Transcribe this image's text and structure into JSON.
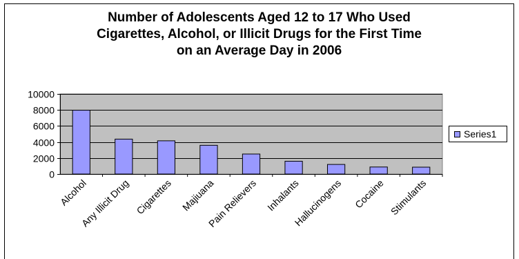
{
  "chart_data": {
    "type": "bar",
    "title_lines": [
      "Number of Adolescents Aged 12 to 17 Who Used",
      "Cigarettes, Alcohol, or Illicit Drugs for the First Time",
      "on an Average Day in 2006"
    ],
    "categories": [
      "Alcohol",
      "Any Illicit Drug",
      "Cigarettes",
      "Majiuana",
      "Pain Relievers",
      "Inhalants",
      "Hallucinogens",
      "Cocaine",
      "Stimulants"
    ],
    "series": [
      {
        "name": "Series1",
        "values": [
          7970,
          4360,
          4150,
          3590,
          2500,
          1600,
          1200,
          880,
          860
        ]
      }
    ],
    "ylim": [
      0,
      10000
    ],
    "yticks": [
      0,
      2000,
      4000,
      6000,
      8000,
      10000
    ],
    "grid": true,
    "legend": "right",
    "colors": {
      "bar": "#9999ff",
      "plot_bg": "#c0c0c0",
      "gridline": "#000000"
    }
  }
}
